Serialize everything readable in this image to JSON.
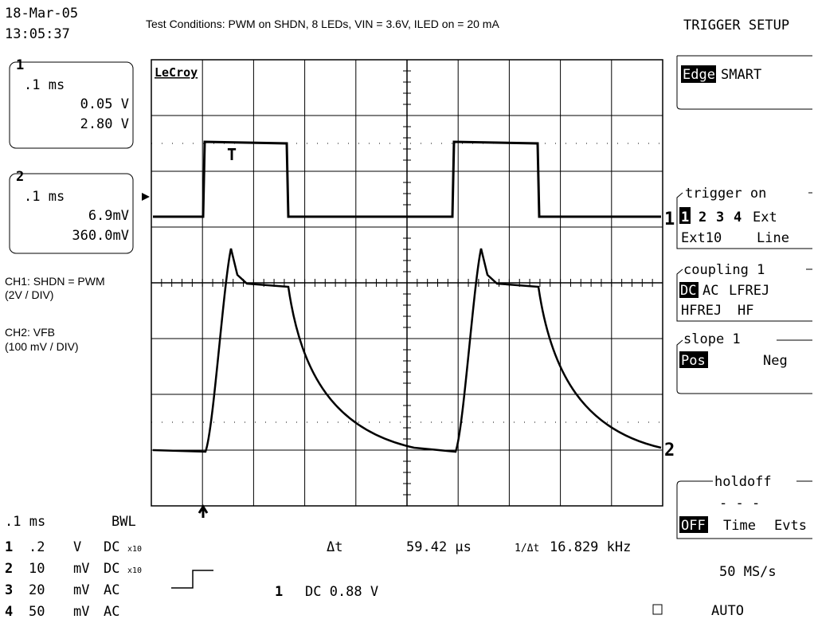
{
  "header": {
    "date": "18-Mar-05",
    "time": "13:05:37",
    "conditions": "Test Conditions: PWM on SHDN, 8 LEDs, VIN = 3.6V, ILED on = 20 mA",
    "menu_title": "TRIGGER SETUP"
  },
  "channels": [
    {
      "id": "1",
      "timebase": ".1 ms",
      "line1": "0.05 V",
      "line2": "2.80 V"
    },
    {
      "id": "2",
      "timebase": ".1 ms",
      "line1": "6.9mV",
      "line2": "360.0mV"
    }
  ],
  "notes": [
    "CH1: SHDN = PWM",
    "(2V / DIV)",
    "CH2: VFB",
    "(100 mV / DIV)"
  ],
  "logo": "LeCroy",
  "markers": {
    "trace1": "1",
    "trace2": "2",
    "trigger": "T"
  },
  "bottom": {
    "timebase": ".1 ms",
    "bwl": "BWL",
    "rows": [
      [
        "1",
        ".2",
        "V",
        "DC",
        "x10"
      ],
      [
        "2",
        "10",
        "mV",
        "DC",
        "x10"
      ],
      [
        "3",
        "20",
        "mV",
        "AC",
        null
      ],
      [
        "4",
        "50",
        "mV",
        "AC",
        null
      ]
    ],
    "delta_t_label": "Δt",
    "delta_t": "59.42 µs",
    "inv_label": "1/Δt",
    "freq": "16.829 kHz",
    "trigger_channel": "1",
    "trigger_level": "DC 0.88 V",
    "sample_rate": "50 MS/s",
    "mode": "AUTO"
  },
  "menu": {
    "type": {
      "selected": "Edge",
      "other": "SMART"
    },
    "trigger_on": {
      "title": "trigger on",
      "options": [
        "1",
        "2",
        "3",
        "4",
        "Ext",
        "Ext10",
        "Line"
      ]
    },
    "coupling": {
      "title": "coupling 1",
      "options": [
        "DC",
        "AC",
        "LFREJ",
        "HFREJ",
        "HF"
      ]
    },
    "slope": {
      "title": "slope 1",
      "options": [
        "Pos",
        "Neg"
      ]
    },
    "holdoff": {
      "title": "holdoff",
      "value": "- - -",
      "options": [
        "OFF",
        "Time",
        "Evts"
      ]
    }
  }
}
